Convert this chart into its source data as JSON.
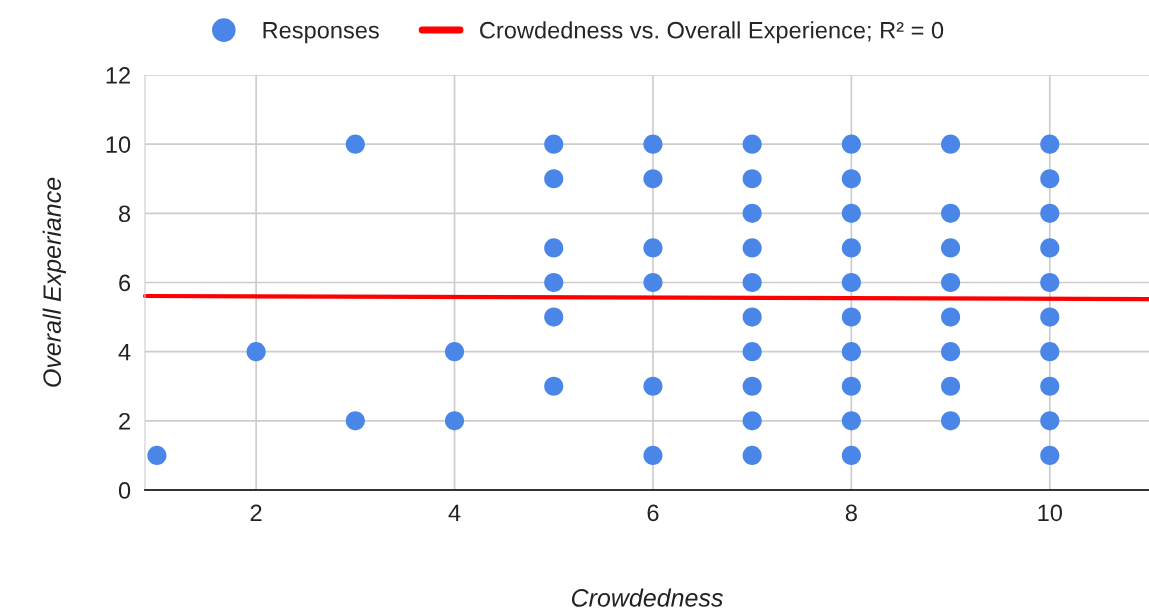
{
  "chart_data": {
    "type": "scatter",
    "xlabel": "Crowdedness",
    "ylabel": "Overall Experiance",
    "series": [
      {
        "name": "Responses",
        "color": "#4a86e8",
        "marker": "circle",
        "x": [
          1,
          2,
          3,
          3,
          4,
          4,
          5,
          5,
          5,
          5,
          5,
          5,
          6,
          6,
          6,
          6,
          6,
          6,
          7,
          7,
          7,
          7,
          7,
          7,
          7,
          7,
          7,
          7,
          8,
          8,
          8,
          8,
          8,
          8,
          8,
          8,
          8,
          8,
          9,
          9,
          9,
          9,
          9,
          9,
          9,
          9,
          10,
          10,
          10,
          10,
          10,
          10,
          10,
          10,
          10,
          10
        ],
        "values": [
          1,
          4,
          10,
          2,
          4,
          2,
          10,
          9,
          7,
          6,
          5,
          3,
          10,
          9,
          7,
          6,
          3,
          1,
          10,
          9,
          8,
          7,
          6,
          5,
          4,
          3,
          2,
          1,
          10,
          9,
          8,
          7,
          6,
          5,
          4,
          3,
          2,
          1,
          10,
          8,
          7,
          6,
          5,
          4,
          3,
          2,
          10,
          9,
          8,
          7,
          6,
          5,
          4,
          3,
          2,
          1
        ]
      },
      {
        "name": "Crowdedness vs. Overall Experience; R² = 0",
        "type": "line",
        "color": "#ff0000",
        "line_style": "solid",
        "marker": "none",
        "x": [
          0.88,
          11
        ],
        "values": [
          5.61,
          5.52
        ]
      }
    ],
    "xlim": [
      0.88,
      11
    ],
    "xticks": [
      2,
      4,
      6,
      8,
      10
    ],
    "ylim": [
      0,
      12
    ],
    "yticks": [
      0,
      2,
      4,
      6,
      8,
      10,
      12
    ],
    "grid": true,
    "legend": "top"
  }
}
